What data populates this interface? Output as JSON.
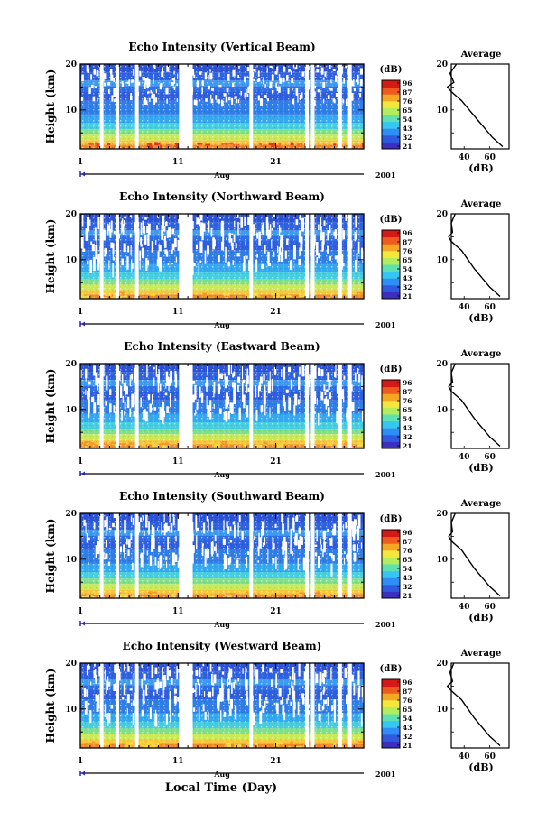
{
  "figure": {
    "bottom_label": "Local Time (Day)",
    "colorbar_unit": "(dB)",
    "colorbar_ticks": [
      "96",
      "87",
      "76",
      "65",
      "54",
      "43",
      "32",
      "21"
    ],
    "colorbar_colors": [
      "#3a2fbf",
      "#2f5ae0",
      "#2e8ef5",
      "#36c6f2",
      "#5fe0b0",
      "#b4ec5c",
      "#f4e63a",
      "#f5a623",
      "#ef5a1e",
      "#d41a16"
    ],
    "y_ticks": [
      "20",
      "10"
    ],
    "x_ticks": [
      "1",
      "11",
      "21"
    ],
    "month_label": "Aug",
    "year_label": "2001",
    "y_label": "Height (km)",
    "avg_title": "Average",
    "avg_xlabel": "(dB)",
    "avg_y_ticks": [
      "20",
      "10"
    ],
    "avg_x_ticks": [
      "40",
      "60"
    ]
  },
  "chart_data": [
    {
      "type": "heatmap",
      "title": "Echo Intensity (Vertical Beam)",
      "ylabel": "Height (km)",
      "xlabel": "Aug 2001",
      "x_range_days": [
        1,
        30
      ],
      "y_range_km": [
        1.5,
        20
      ],
      "color_range_db": [
        21,
        96
      ],
      "data_gaps_days": [
        [
          11.1,
          12.5
        ]
      ],
      "profile_height_km": [
        2,
        3,
        4,
        6,
        8,
        10,
        12,
        13,
        14,
        15,
        16,
        18,
        20
      ],
      "profile_avg_db": [
        70,
        66,
        62,
        56,
        50,
        44,
        38,
        34,
        30,
        27,
        32,
        29,
        34
      ]
    },
    {
      "type": "heatmap",
      "title": "Echo Intensity (Northward Beam)",
      "ylabel": "Height (km)",
      "xlabel": "Aug 2001",
      "x_range_days": [
        1,
        30
      ],
      "y_range_km": [
        1.5,
        20
      ],
      "color_range_db": [
        21,
        96
      ],
      "data_gaps_days": [
        [
          11.1,
          12.5
        ]
      ],
      "profile_height_km": [
        2,
        3,
        4,
        6,
        8,
        10,
        12,
        13,
        14,
        15,
        16,
        18,
        20
      ],
      "profile_avg_db": [
        68,
        64,
        60,
        54,
        48,
        43,
        38,
        34,
        30,
        28,
        31,
        30,
        33
      ]
    },
    {
      "type": "heatmap",
      "title": "Echo Intensity (Eastward Beam)",
      "ylabel": "Height (km)",
      "xlabel": "Aug 2001",
      "x_range_days": [
        1,
        30
      ],
      "y_range_km": [
        1.5,
        20
      ],
      "color_range_db": [
        21,
        96
      ],
      "data_gaps_days": [
        [
          11.1,
          12.5
        ]
      ],
      "profile_height_km": [
        2,
        3,
        4,
        6,
        8,
        10,
        12,
        13,
        14,
        15,
        16,
        18,
        20
      ],
      "profile_avg_db": [
        68,
        64,
        60,
        54,
        48,
        43,
        38,
        34,
        30,
        28,
        31,
        30,
        33
      ]
    },
    {
      "type": "heatmap",
      "title": "Echo Intensity (Southward Beam)",
      "ylabel": "Height (km)",
      "xlabel": "Aug 2001",
      "x_range_days": [
        1,
        30
      ],
      "y_range_km": [
        1.5,
        20
      ],
      "color_range_db": [
        21,
        96
      ],
      "data_gaps_days": [
        [
          11.1,
          12.5
        ]
      ],
      "profile_height_km": [
        2,
        3,
        4,
        6,
        8,
        10,
        12,
        13,
        14,
        15,
        16,
        18,
        20
      ],
      "profile_avg_db": [
        68,
        64,
        60,
        54,
        48,
        43,
        38,
        34,
        30,
        28,
        31,
        30,
        33
      ]
    },
    {
      "type": "heatmap",
      "title": "Echo Intensity (Westward Beam)",
      "ylabel": "Height (km)",
      "xlabel": "Aug 2001",
      "x_range_days": [
        1,
        30
      ],
      "y_range_km": [
        1.5,
        20
      ],
      "color_range_db": [
        21,
        96
      ],
      "data_gaps_days": [
        [
          11.1,
          12.5
        ]
      ],
      "profile_height_km": [
        2,
        3,
        4,
        6,
        8,
        10,
        12,
        13,
        14,
        15,
        16,
        18,
        20
      ],
      "profile_avg_db": [
        68,
        64,
        60,
        54,
        48,
        43,
        38,
        34,
        30,
        27,
        31,
        29,
        32
      ]
    }
  ]
}
